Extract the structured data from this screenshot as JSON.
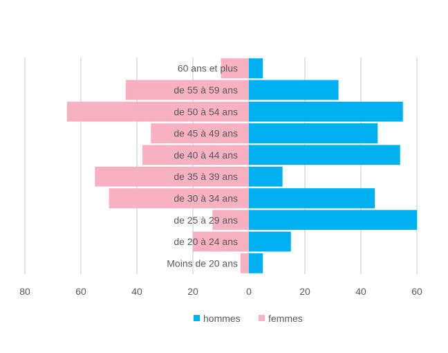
{
  "chart_data": {
    "type": "bar",
    "orientation": "horizontal",
    "layout": "population-pyramid",
    "categories": [
      "Moins de 20 ans",
      "de 20 à 24 ans",
      "de 25 à 29 ans",
      "de 30 à 34 ans",
      "de 35 à 39 ans",
      "de 40 à 44 ans",
      "de 45 à 49 ans",
      "de 50 à 54 ans",
      "de 55 à 59 ans",
      "60 ans et plus"
    ],
    "series": [
      {
        "name": "hommes",
        "side": "right",
        "color": "#00b0f0",
        "values": [
          5,
          15,
          60,
          45,
          12,
          54,
          46,
          55,
          32,
          5
        ]
      },
      {
        "name": "femmes",
        "side": "left",
        "color": "#f8b1c0",
        "values": [
          3,
          20,
          13,
          50,
          55,
          38,
          35,
          65,
          44,
          10
        ]
      }
    ],
    "xlim": [
      -80,
      60
    ],
    "x_ticks": [
      -80,
      -60,
      -40,
      -20,
      0,
      20,
      40,
      60
    ],
    "x_tick_labels": [
      "80",
      "60",
      "40",
      "20",
      "0",
      "20",
      "40",
      "60"
    ],
    "grid": "vertical",
    "legend_position": "bottom",
    "title": "",
    "xlabel": "",
    "ylabel": ""
  }
}
